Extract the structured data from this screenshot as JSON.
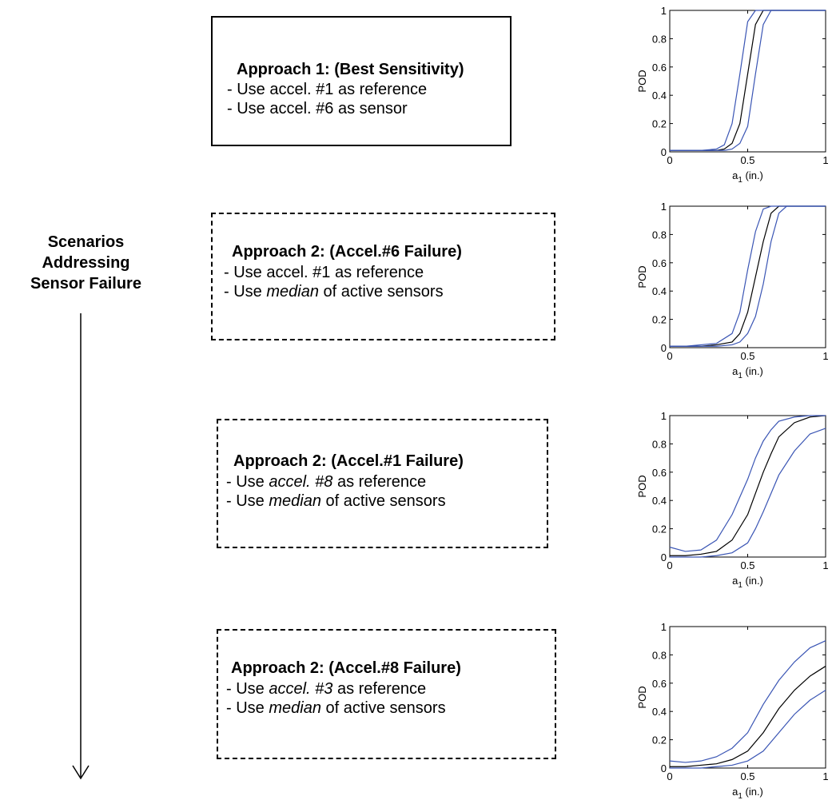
{
  "side_label": [
    "Scenarios",
    "Addressing",
    "Sensor Failure"
  ],
  "approaches": [
    {
      "style": "solid",
      "title": "Approach 1:  (Best Sensitivity)",
      "lines": [
        {
          "pre": "- Use accel. #1 as reference",
          "em": "",
          "post": ""
        },
        {
          "pre": "- Use accel. #6 as sensor",
          "em": "",
          "post": ""
        }
      ]
    },
    {
      "style": "dashed",
      "title": "Approach 2:  (Accel.#6 Failure)",
      "lines": [
        {
          "pre": "- Use accel. #1 as reference",
          "em": "",
          "post": ""
        },
        {
          "pre": "- Use ",
          "em": "median",
          "post": " of active sensors"
        }
      ]
    },
    {
      "style": "dashed",
      "title": "Approach 2:  (Accel.#1 Failure)",
      "lines": [
        {
          "pre": "- Use ",
          "em": "accel. #8",
          "post": " as reference"
        },
        {
          "pre": "- Use ",
          "em": "median",
          "post": " of active sensors"
        }
      ]
    },
    {
      "style": "dashed",
      "title": "Approach 2:  (Accel.#8 Failure)",
      "lines": [
        {
          "pre": "- Use ",
          "em": "accel. #3",
          "post": " as reference"
        },
        {
          "pre": "- Use ",
          "em": "median",
          "post": " of active sensors"
        }
      ]
    }
  ],
  "colors": {
    "mean": "#000000",
    "bounds": "#3a55b4"
  },
  "chart_data": [
    {
      "type": "line",
      "ylabel": "POD",
      "xlabel": "a",
      "xlabel_sub": "1",
      "xlabel_unit": " (in.)",
      "xlim": [
        0,
        1
      ],
      "ylim": [
        0,
        1
      ],
      "xticks": [
        "0",
        "0.5",
        "1"
      ],
      "yticks": [
        "0",
        "0.2",
        "0.4",
        "0.6",
        "0.8",
        "1"
      ],
      "x": [
        0,
        0.1,
        0.2,
        0.3,
        0.35,
        0.4,
        0.45,
        0.5,
        0.55,
        0.6,
        0.65,
        0.7,
        0.8,
        0.9,
        1.0
      ],
      "series": [
        {
          "role": "mean",
          "values": [
            0.01,
            0.01,
            0.01,
            0.01,
            0.02,
            0.06,
            0.2,
            0.55,
            0.9,
            1.0,
            1.0,
            1.0,
            1.0,
            1.0,
            1.0
          ]
        },
        {
          "role": "upper",
          "values": [
            0.01,
            0.01,
            0.01,
            0.02,
            0.05,
            0.2,
            0.55,
            0.92,
            1.0,
            1.0,
            1.0,
            1.0,
            1.0,
            1.0,
            1.0
          ]
        },
        {
          "role": "lower",
          "values": [
            0.01,
            0.01,
            0.01,
            0.01,
            0.01,
            0.02,
            0.06,
            0.18,
            0.55,
            0.9,
            1.0,
            1.0,
            1.0,
            1.0,
            1.0
          ]
        }
      ]
    },
    {
      "type": "line",
      "ylabel": "POD",
      "xlabel": "a",
      "xlabel_sub": "1",
      "xlabel_unit": " (in.)",
      "xlim": [
        0,
        1
      ],
      "ylim": [
        0,
        1
      ],
      "xticks": [
        "0",
        "0.5",
        "1"
      ],
      "yticks": [
        "0",
        "0.2",
        "0.4",
        "0.6",
        "0.8",
        "1"
      ],
      "x": [
        0,
        0.1,
        0.2,
        0.3,
        0.4,
        0.45,
        0.5,
        0.55,
        0.6,
        0.65,
        0.7,
        0.75,
        0.8,
        0.9,
        1.0
      ],
      "series": [
        {
          "role": "mean",
          "values": [
            0.01,
            0.01,
            0.01,
            0.02,
            0.04,
            0.1,
            0.25,
            0.5,
            0.75,
            0.95,
            1.0,
            1.0,
            1.0,
            1.0,
            1.0
          ]
        },
        {
          "role": "upper",
          "values": [
            0.01,
            0.01,
            0.02,
            0.03,
            0.1,
            0.25,
            0.55,
            0.82,
            0.98,
            1.0,
            1.0,
            1.0,
            1.0,
            1.0,
            1.0
          ]
        },
        {
          "role": "lower",
          "values": [
            0.01,
            0.01,
            0.01,
            0.01,
            0.02,
            0.04,
            0.1,
            0.22,
            0.45,
            0.75,
            0.95,
            1.0,
            1.0,
            1.0,
            1.0
          ]
        }
      ]
    },
    {
      "type": "line",
      "ylabel": "POD",
      "xlabel": "a",
      "xlabel_sub": "1",
      "xlabel_unit": " (in.)",
      "xlim": [
        0,
        1
      ],
      "ylim": [
        0,
        1
      ],
      "xticks": [
        "0",
        "0.5",
        "1"
      ],
      "yticks": [
        "0",
        "0.2",
        "0.4",
        "0.6",
        "0.8",
        "1"
      ],
      "x": [
        0,
        0.1,
        0.2,
        0.3,
        0.4,
        0.5,
        0.55,
        0.6,
        0.65,
        0.7,
        0.8,
        0.9,
        1.0
      ],
      "series": [
        {
          "role": "mean",
          "values": [
            0.01,
            0.01,
            0.02,
            0.04,
            0.12,
            0.3,
            0.45,
            0.6,
            0.73,
            0.85,
            0.95,
            0.99,
            1.0
          ]
        },
        {
          "role": "upper",
          "values": [
            0.07,
            0.04,
            0.05,
            0.12,
            0.3,
            0.55,
            0.7,
            0.82,
            0.9,
            0.96,
            0.99,
            1.0,
            1.0
          ]
        },
        {
          "role": "lower",
          "values": [
            0.0,
            0.0,
            0.0,
            0.01,
            0.03,
            0.1,
            0.2,
            0.32,
            0.45,
            0.58,
            0.75,
            0.87,
            0.91
          ]
        }
      ]
    },
    {
      "type": "line",
      "ylabel": "POD",
      "xlabel": "a",
      "xlabel_sub": "1",
      "xlabel_unit": " (in.)",
      "xlim": [
        0,
        1
      ],
      "ylim": [
        0,
        1
      ],
      "xticks": [
        "0",
        "0.5",
        "1"
      ],
      "yticks": [
        "0",
        "0.2",
        "0.4",
        "0.6",
        "0.8",
        "1"
      ],
      "x": [
        0,
        0.1,
        0.2,
        0.3,
        0.4,
        0.5,
        0.6,
        0.7,
        0.8,
        0.9,
        1.0
      ],
      "series": [
        {
          "role": "mean",
          "values": [
            0.01,
            0.01,
            0.02,
            0.03,
            0.06,
            0.12,
            0.25,
            0.42,
            0.55,
            0.65,
            0.72
          ]
        },
        {
          "role": "upper",
          "values": [
            0.05,
            0.04,
            0.05,
            0.08,
            0.14,
            0.25,
            0.45,
            0.62,
            0.75,
            0.85,
            0.9
          ]
        },
        {
          "role": "lower",
          "values": [
            0.0,
            0.0,
            0.0,
            0.01,
            0.02,
            0.05,
            0.12,
            0.25,
            0.38,
            0.48,
            0.55
          ]
        }
      ]
    }
  ]
}
